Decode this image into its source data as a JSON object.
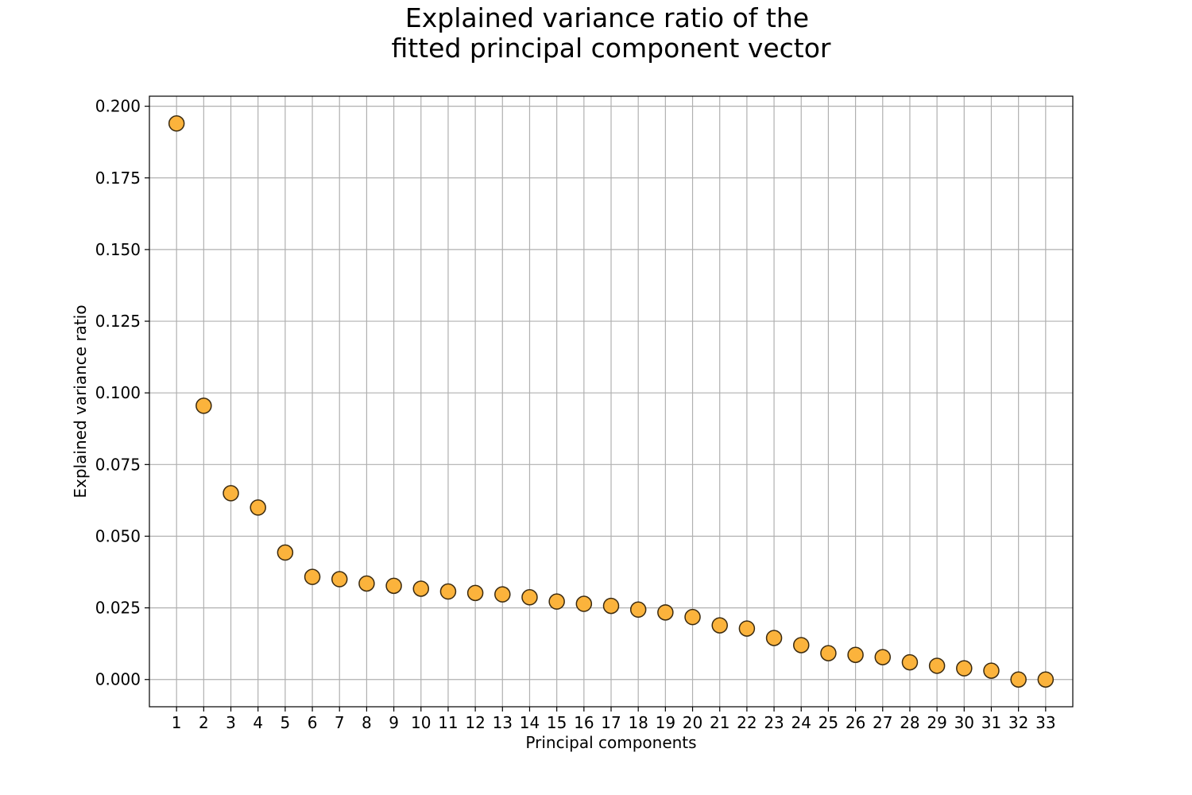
{
  "colors": {
    "marker_fill": "#fbb33c",
    "marker_edge": "#3a2a10",
    "grid": "#b0b0b0"
  },
  "chart_data": {
    "type": "scatter",
    "title_line1": "Explained variance ratio of the",
    "title_line2": "fitted principal component vector",
    "xlabel": "Principal components",
    "ylabel": "Explained variance ratio",
    "grid": true,
    "xlim": [
      0,
      34
    ],
    "ylim": [
      -0.0095,
      0.2035
    ],
    "x": [
      1,
      2,
      3,
      4,
      5,
      6,
      7,
      8,
      9,
      10,
      11,
      12,
      13,
      14,
      15,
      16,
      17,
      18,
      19,
      20,
      21,
      22,
      23,
      24,
      25,
      26,
      27,
      28,
      29,
      30,
      31,
      32,
      33
    ],
    "x_tick_labels": [
      "1",
      "2",
      "3",
      "4",
      "5",
      "6",
      "7",
      "8",
      "9",
      "10",
      "11",
      "12",
      "13",
      "14",
      "15",
      "16",
      "17",
      "18",
      "19",
      "20",
      "21",
      "22",
      "23",
      "24",
      "25",
      "26",
      "27",
      "28",
      "29",
      "30",
      "31",
      "32",
      "33"
    ],
    "y_ticks": [
      0.0,
      0.025,
      0.05,
      0.075,
      0.1,
      0.125,
      0.15,
      0.175,
      0.2
    ],
    "y_tick_labels": [
      "0.000",
      "0.025",
      "0.050",
      "0.075",
      "0.100",
      "0.125",
      "0.150",
      "0.175",
      "0.200"
    ],
    "y": [
      0.194,
      0.0955,
      0.065,
      0.06,
      0.0443,
      0.0358,
      0.035,
      0.0335,
      0.0327,
      0.0317,
      0.0307,
      0.0302,
      0.0297,
      0.0287,
      0.0272,
      0.0264,
      0.0257,
      0.0244,
      0.0234,
      0.0218,
      0.0189,
      0.0178,
      0.0145,
      0.012,
      0.0092,
      0.0086,
      0.0078,
      0.006,
      0.0048,
      0.0039,
      0.0031,
      0.0,
      0.0
    ]
  }
}
